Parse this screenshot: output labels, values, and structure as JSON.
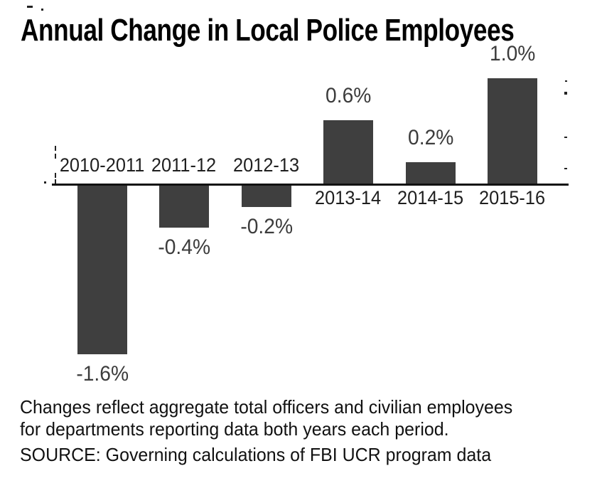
{
  "title": "Annual Change in Local Police Employees",
  "chart_data": {
    "type": "bar",
    "title": "Annual Change in Local Police Employees",
    "categories": [
      "2010-2011",
      "2011-12",
      "2012-13",
      "2013-14",
      "2014-15",
      "2015-16"
    ],
    "values": [
      -1.6,
      -0.4,
      -0.2,
      0.6,
      0.2,
      1.0
    ],
    "value_labels": [
      "-1.6%",
      "-0.4%",
      "-0.2%",
      "0.6%",
      "0.2%",
      "1.0%"
    ],
    "xlabel": "",
    "ylabel": "",
    "ylim": [
      -1.8,
      1.2
    ],
    "grid": false,
    "legend": "none",
    "bar_color": "#3f3f3f",
    "axis_color": "#111111",
    "value_label_position": "outside-end",
    "category_label_position": "opposite-side-of-zero-axis"
  },
  "footnote": {
    "line1": "Changes reflect aggregate total officers and civilian employees",
    "line2": "for departments reporting data both years each period."
  },
  "source": "SOURCE: Governing calculations of FBI UCR program data"
}
